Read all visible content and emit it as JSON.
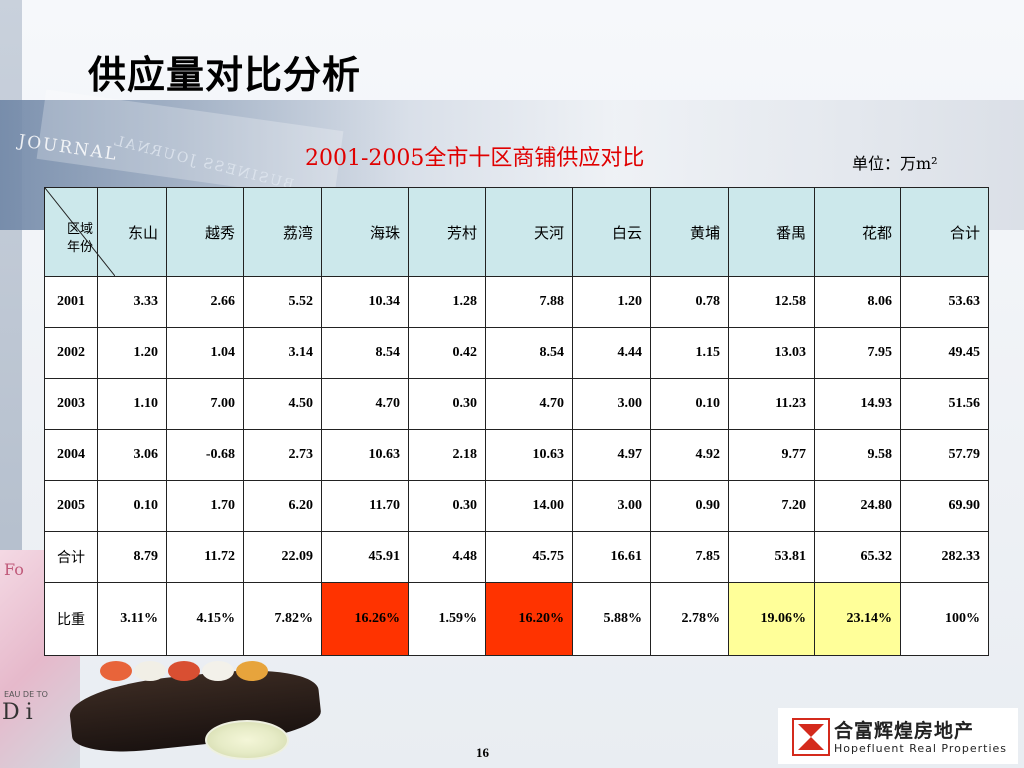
{
  "title": "供应量对比分析",
  "table_title": "2001-2005全市十区商铺供应对比",
  "unit": "单位：万m²",
  "corner": {
    "region": "区域",
    "year": "年份"
  },
  "columns": [
    "东山",
    "越秀",
    "荔湾",
    "海珠",
    "芳村",
    "天河",
    "白云",
    "黄埔",
    "番禺",
    "花都",
    "合计"
  ],
  "rows": [
    {
      "label": "2001",
      "values": [
        "3.33",
        "2.66",
        "5.52",
        "10.34",
        "1.28",
        "7.88",
        "1.20",
        "0.78",
        "12.58",
        "8.06",
        "53.63"
      ]
    },
    {
      "label": "2002",
      "values": [
        "1.20",
        "1.04",
        "3.14",
        "8.54",
        "0.42",
        "8.54",
        "4.44",
        "1.15",
        "13.03",
        "7.95",
        "49.45"
      ]
    },
    {
      "label": "2003",
      "values": [
        "1.10",
        "7.00",
        "4.50",
        "4.70",
        "0.30",
        "4.70",
        "3.00",
        "0.10",
        "11.23",
        "14.93",
        "51.56"
      ]
    },
    {
      "label": "2004",
      "values": [
        "3.06",
        "-0.68",
        "2.73",
        "10.63",
        "2.18",
        "10.63",
        "4.97",
        "4.92",
        "9.77",
        "9.58",
        "57.79"
      ]
    },
    {
      "label": "2005",
      "values": [
        "0.10",
        "1.70",
        "6.20",
        "11.70",
        "0.30",
        "14.00",
        "3.00",
        "0.90",
        "7.20",
        "24.80",
        "69.90"
      ]
    },
    {
      "label": "合计",
      "values": [
        "8.79",
        "11.72",
        "22.09",
        "45.91",
        "4.48",
        "45.75",
        "16.61",
        "7.85",
        "53.81",
        "65.32",
        "282.33"
      ]
    },
    {
      "label": "比重",
      "values": [
        "3.11%",
        "4.15%",
        "7.82%",
        "16.26%",
        "1.59%",
        "16.20%",
        "5.88%",
        "2.78%",
        "19.06%",
        "23.14%",
        "100%"
      ]
    }
  ],
  "highlight_colors": {
    "red": "#ff3300",
    "yellow": "#ffff99",
    "header": "#cce8eb"
  },
  "page_number": "16",
  "logo": {
    "cn": "合富辉煌房地产",
    "en": "Hopefluent Real Properties"
  },
  "background_text": {
    "journal": "JOURNAL",
    "business": "BUSINESS JOURNAL",
    "perfume_line": "EAU DE TO",
    "perfume_big": "Di",
    "perfume_top": "Fo"
  }
}
